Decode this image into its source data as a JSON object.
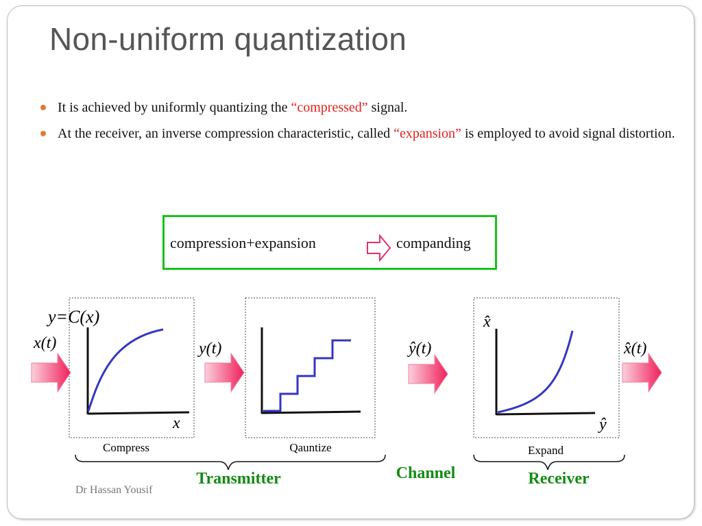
{
  "title": "Non-uniform quantization",
  "bullets": [
    {
      "pre": "It is achieved by uniformly quantizing the ",
      "em": "“compressed”",
      "post": " signal."
    },
    {
      "pre": "At the receiver, an inverse compression characteristic, called ",
      "em": "“expansion”",
      "post": " is employed to avoid signal distortion."
    }
  ],
  "companding": {
    "left": "compression+expansion",
    "right": "companding"
  },
  "diagram": {
    "input_signal": "x(t)",
    "compress_formula": "y=C(x)",
    "compress_x_axis": "x",
    "compressed_signal": "y(t)",
    "quantized_signal": "ŷ(t)",
    "expand_y_axis": "x̂",
    "expand_x_axis": "ŷ",
    "output_signal": "x̂(t)",
    "box_labels": {
      "compress": "Compress",
      "quantize": "Qauntize",
      "expand": "Expand"
    },
    "sections": {
      "transmitter": "Transmitter",
      "channel": "Channel",
      "receiver": "Receiver"
    }
  },
  "colors": {
    "title": "#555555",
    "accent_red": "#e0201d",
    "bullet": "#e07b39",
    "box_border": "#17c11a",
    "curve": "#3535c0",
    "section_label": "#148a14",
    "arrow_pink": "#f0205a"
  },
  "footer": "Dr Hassan Yousif"
}
